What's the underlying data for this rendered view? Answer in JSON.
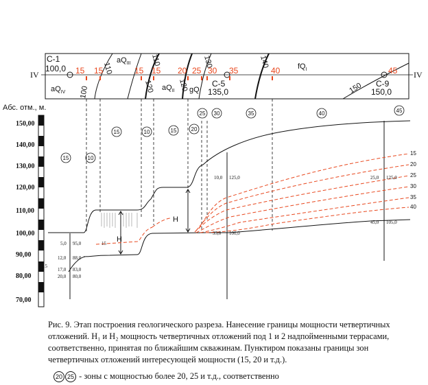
{
  "plan": {
    "wells": [
      {
        "name": "С-1",
        "elev": "100,0"
      },
      {
        "name": "С-5",
        "elev": "135,0"
      },
      {
        "name": "С-9",
        "elev": "150,0"
      }
    ],
    "section_end_left": "IV",
    "section_end_right": "IV",
    "units": [
      "aQIV",
      "aQIII",
      "aQII",
      "gQ",
      "fQI"
    ],
    "contour_labels": [
      "100",
      "110",
      "110",
      "120",
      "120",
      "130",
      "140",
      "150"
    ],
    "red_labels": [
      "15",
      "15",
      "15",
      "15",
      "20",
      "25",
      "30",
      "35",
      "40",
      "45"
    ]
  },
  "section": {
    "axis_title": "Абс. отм.,  м.",
    "elevations": [
      "150,00",
      "140,00",
      "130,00",
      "120,00",
      "110,00",
      "100,00",
      "90,00",
      "80,00",
      "70,00"
    ],
    "zones_top_row": [
      "25",
      "30",
      "35",
      "40",
      "45"
    ],
    "zones_mid_row": [
      "15",
      "10",
      "15",
      "20"
    ],
    "zones_left": [
      "15",
      "10"
    ],
    "h_labels": [
      "H",
      "H"
    ],
    "isoline_labels": [
      "15",
      "20",
      "25",
      "30",
      "35",
      "40"
    ],
    "well_labels": {
      "c1": [
        "5,0",
        "95,0",
        "12,0",
        "88,0",
        "17,0",
        "83,0",
        "20,0",
        "80,0"
      ],
      "c5_top": [
        "10,0",
        "125,0"
      ],
      "c5_bottom": [
        "35,0",
        "100,0"
      ],
      "c9_top": [
        "25,0",
        "125,0"
      ],
      "c9_bottom": [
        "45,0",
        "105,0"
      ]
    },
    "left_marker": "15",
    "mid_marker": "15"
  },
  "caption": {
    "line1": "Рис. 9. Этап построения геологического разреза. Нанесение границы мощности четвертичных",
    "line2": "отложений. H₁ и H₂ мощность четвертичных отложений под 1 и 2 надпойменными террасами,",
    "line3": "соответственно, принятая по ближайшим скважинам. Пунктиром показаны границы зон",
    "line4": "четвертичных отложений интересующей мощности (15, 20 и т.д.).",
    "legend_num1": "20",
    "legend_num2": "25",
    "legend_text": " - зоны с мощностью более 20, 25 и т.д., соответственно"
  },
  "colors": {
    "red": "#e8461c",
    "black": "#111111"
  }
}
